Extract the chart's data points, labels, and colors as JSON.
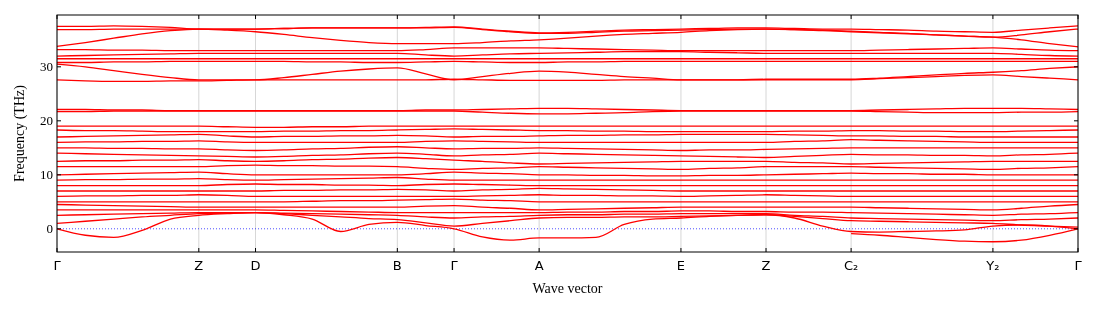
{
  "chart_data": {
    "type": "line",
    "xlabel": "Wave vector",
    "ylabel": "Frequency (THz)",
    "categories": [
      "Γ",
      null,
      null,
      null,
      null,
      "Z",
      null,
      "D",
      null,
      null,
      null,
      null,
      "B",
      null,
      "Γ",
      null,
      null,
      "A",
      null,
      null,
      null,
      null,
      "E",
      null,
      null,
      "Z",
      null,
      null,
      "C₂",
      null,
      null,
      null,
      null,
      "Y₂",
      null,
      null,
      "Γ"
    ],
    "ylim": [
      -4.3,
      39.6
    ],
    "yticks": [
      0,
      10,
      20,
      30
    ],
    "grid": "x",
    "line_style": "solid",
    "ref_lines": [
      {
        "axis": "y",
        "value": 0,
        "color": "#0000ff",
        "line_style": "dotted"
      }
    ],
    "series": [
      {
        "color": "#ff0000",
        "values": [
          37.5,
          37.5,
          37.6,
          37.5,
          37.3,
          37.0,
          37.0,
          37.0,
          37.1,
          37.2,
          37.2,
          37.2,
          37.2,
          37.3,
          37.4,
          37.0,
          36.6,
          36.3,
          36.4,
          36.6,
          36.8,
          36.9,
          37.0,
          37.1,
          37.2,
          37.2,
          37.1,
          37.0,
          37.0,
          36.9,
          36.8,
          36.6,
          36.5,
          36.4,
          36.8,
          37.2,
          37.6
        ]
      },
      {
        "color": "#ff0000",
        "values": [
          36.9,
          36.9,
          37.0,
          37.0,
          37.0,
          37.0,
          37.0,
          37.0,
          37.1,
          37.2,
          37.2,
          37.2,
          37.2,
          37.2,
          37.3,
          36.9,
          36.5,
          36.2,
          36.2,
          36.4,
          36.6,
          36.7,
          36.8,
          36.9,
          37.0,
          37.0,
          36.9,
          36.8,
          36.6,
          36.4,
          36.2,
          35.9,
          35.7,
          35.5,
          35.9,
          36.5,
          37.0
        ]
      },
      {
        "color": "#ff0000",
        "values": [
          33.8,
          34.5,
          35.3,
          36.1,
          36.7,
          37.0,
          36.8,
          36.5,
          36.0,
          35.4,
          34.9,
          34.5,
          34.3,
          34.3,
          34.3,
          34.5,
          34.8,
          35.0,
          35.3,
          35.7,
          36.0,
          36.2,
          36.4,
          36.7,
          36.9,
          37.0,
          36.9,
          36.7,
          36.5,
          36.3,
          36.1,
          35.9,
          35.7,
          35.5,
          35.0,
          34.3,
          33.7
        ]
      },
      {
        "color": "#ff0000",
        "values": [
          33.2,
          33.2,
          33.1,
          33.1,
          33.0,
          33.0,
          33.0,
          33.0,
          33.0,
          33.0,
          33.0,
          33.0,
          33.0,
          33.2,
          33.5,
          33.5,
          33.5,
          33.5,
          33.4,
          33.3,
          33.2,
          33.1,
          33.0,
          33.0,
          33.0,
          33.0,
          33.0,
          33.0,
          33.0,
          33.1,
          33.2,
          33.3,
          33.4,
          33.5,
          33.3,
          33.1,
          33.0
        ]
      },
      {
        "color": "#ff0000",
        "values": [
          32.0,
          32.1,
          32.2,
          32.3,
          32.4,
          32.5,
          32.5,
          32.5,
          32.5,
          32.5,
          32.5,
          32.5,
          32.5,
          32.2,
          32.0,
          32.2,
          32.4,
          32.5,
          32.6,
          32.7,
          32.8,
          32.8,
          32.8,
          32.7,
          32.6,
          32.5,
          32.5,
          32.5,
          32.5,
          32.5,
          32.5,
          32.5,
          32.5,
          32.5,
          32.3,
          32.1,
          32.0
        ]
      },
      {
        "color": "#ff0000",
        "values": [
          31.5,
          31.5,
          31.5,
          31.5,
          31.5,
          31.5,
          31.5,
          31.5,
          31.5,
          31.5,
          31.5,
          31.5,
          31.5,
          31.5,
          31.5,
          31.5,
          31.5,
          31.5,
          31.5,
          31.5,
          31.5,
          31.5,
          31.5,
          31.5,
          31.5,
          31.5,
          31.5,
          31.5,
          31.5,
          31.5,
          31.5,
          31.5,
          31.5,
          31.5,
          31.5,
          31.5,
          31.5
        ]
      },
      {
        "color": "#ff0000",
        "values": [
          30.8,
          30.8,
          30.9,
          30.9,
          31.0,
          31.0,
          31.0,
          31.0,
          31.0,
          30.9,
          30.9,
          30.8,
          30.8,
          30.9,
          31.0,
          30.9,
          30.8,
          30.8,
          30.9,
          30.9,
          31.0,
          31.0,
          31.0,
          31.0,
          31.0,
          31.0,
          31.0,
          31.0,
          31.0,
          31.0,
          31.0,
          31.0,
          31.0,
          31.0,
          31.0,
          31.0,
          31.0
        ]
      },
      {
        "color": "#ff0000",
        "values": [
          30.5,
          30.0,
          29.3,
          28.6,
          28.0,
          27.6,
          27.6,
          27.6,
          28.0,
          28.6,
          29.2,
          29.6,
          29.8,
          28.7,
          27.6,
          28.2,
          28.8,
          29.2,
          29.0,
          28.6,
          28.2,
          27.9,
          27.6,
          27.6,
          27.6,
          27.7,
          27.7,
          27.7,
          27.7,
          27.9,
          28.2,
          28.5,
          28.8,
          29.0,
          29.3,
          29.7,
          30.0
        ]
      },
      {
        "color": "#ff0000",
        "values": [
          27.6,
          27.4,
          27.3,
          27.3,
          27.4,
          27.4,
          27.5,
          27.6,
          27.6,
          27.6,
          27.6,
          27.6,
          27.6,
          27.6,
          27.7,
          27.6,
          27.5,
          27.5,
          27.5,
          27.5,
          27.6,
          27.6,
          27.6,
          27.6,
          27.6,
          27.6,
          27.6,
          27.6,
          27.6,
          27.8,
          28.0,
          28.2,
          28.4,
          28.5,
          28.2,
          27.9,
          27.6
        ]
      },
      {
        "color": "#ff0000",
        "values": [
          22.1,
          22.1,
          22.0,
          22.0,
          21.9,
          21.9,
          21.9,
          21.9,
          21.9,
          21.9,
          21.9,
          21.9,
          21.9,
          22.0,
          22.0,
          22.1,
          22.2,
          22.3,
          22.3,
          22.2,
          22.1,
          22.0,
          21.9,
          21.9,
          21.9,
          21.9,
          21.9,
          21.9,
          21.9,
          22.0,
          22.1,
          22.2,
          22.3,
          22.3,
          22.3,
          22.2,
          22.1
        ]
      },
      {
        "color": "#ff0000",
        "values": [
          21.7,
          21.7,
          21.8,
          21.8,
          21.8,
          21.8,
          21.8,
          21.8,
          21.8,
          21.8,
          21.8,
          21.8,
          21.8,
          21.8,
          21.8,
          21.6,
          21.4,
          21.3,
          21.3,
          21.4,
          21.5,
          21.7,
          21.8,
          21.8,
          21.8,
          21.8,
          21.8,
          21.8,
          21.8,
          21.7,
          21.6,
          21.5,
          21.5,
          21.5,
          21.6,
          21.6,
          21.7
        ]
      },
      {
        "color": "#ff0000",
        "values": [
          19.0,
          19.0,
          19.0,
          19.0,
          19.0,
          19.0,
          18.9,
          18.8,
          18.8,
          18.9,
          18.9,
          19.0,
          19.0,
          19.0,
          19.0,
          19.0,
          19.0,
          19.0,
          19.0,
          19.0,
          19.0,
          19.0,
          19.0,
          19.0,
          19.0,
          19.0,
          19.0,
          19.0,
          19.0,
          19.0,
          19.0,
          19.0,
          19.0,
          19.0,
          19.0,
          19.0,
          19.0
        ]
      },
      {
        "color": "#ff0000",
        "values": [
          18.3,
          18.2,
          18.2,
          18.1,
          18.0,
          18.0,
          18.0,
          18.0,
          18.1,
          18.1,
          18.2,
          18.2,
          18.3,
          18.4,
          18.5,
          18.4,
          18.3,
          18.2,
          18.2,
          18.1,
          18.1,
          18.0,
          18.0,
          18.0,
          18.0,
          18.0,
          18.1,
          18.1,
          18.2,
          18.2,
          18.1,
          18.1,
          18.0,
          18.0,
          18.1,
          18.2,
          18.3
        ]
      },
      {
        "color": "#ff0000",
        "values": [
          17.0,
          17.1,
          17.2,
          17.3,
          17.4,
          17.5,
          17.2,
          17.0,
          17.1,
          17.1,
          17.2,
          17.2,
          17.3,
          17.2,
          17.0,
          17.1,
          17.1,
          17.2,
          17.3,
          17.3,
          17.4,
          17.4,
          17.5,
          17.5,
          17.5,
          17.5,
          17.4,
          17.3,
          17.2,
          17.2,
          17.1,
          17.1,
          17.0,
          17.0,
          17.0,
          17.0,
          17.0
        ]
      },
      {
        "color": "#ff0000",
        "values": [
          16.0,
          16.1,
          16.1,
          16.2,
          16.2,
          16.3,
          16.1,
          16.0,
          16.0,
          16.0,
          16.0,
          16.0,
          16.0,
          16.2,
          16.3,
          16.2,
          16.1,
          16.0,
          16.0,
          16.0,
          16.0,
          16.0,
          16.0,
          16.0,
          16.0,
          16.0,
          16.2,
          16.3,
          16.5,
          16.4,
          16.3,
          16.2,
          16.1,
          16.0,
          16.0,
          16.0,
          16.0
        ]
      },
      {
        "color": "#ff0000",
        "values": [
          15.0,
          15.0,
          14.9,
          14.9,
          14.8,
          14.8,
          14.6,
          14.5,
          14.6,
          14.8,
          14.9,
          15.1,
          15.2,
          15.0,
          14.8,
          14.9,
          14.9,
          15.0,
          14.9,
          14.8,
          14.7,
          14.6,
          14.5,
          14.6,
          14.6,
          14.7,
          14.8,
          14.9,
          15.0,
          15.0,
          15.0,
          15.0,
          15.0,
          15.0,
          15.0,
          15.0,
          15.0
        ]
      },
      {
        "color": "#ff0000",
        "values": [
          14.0,
          13.9,
          13.8,
          13.7,
          13.6,
          13.5,
          13.4,
          13.3,
          13.4,
          13.6,
          13.7,
          13.9,
          14.0,
          13.8,
          13.5,
          13.7,
          13.8,
          14.0,
          13.9,
          13.8,
          13.7,
          13.6,
          13.5,
          13.4,
          13.3,
          13.2,
          13.4,
          13.6,
          13.8,
          13.7,
          13.7,
          13.6,
          13.6,
          13.5,
          13.7,
          13.8,
          14.0
        ]
      },
      {
        "color": "#ff0000",
        "values": [
          12.5,
          12.6,
          12.6,
          12.7,
          12.7,
          12.8,
          12.6,
          12.5,
          12.6,
          12.8,
          12.9,
          13.1,
          13.2,
          13.0,
          12.7,
          12.5,
          12.2,
          12.0,
          12.1,
          12.2,
          12.3,
          12.4,
          12.5,
          12.5,
          12.5,
          12.5,
          12.3,
          12.2,
          12.0,
          12.1,
          12.2,
          12.3,
          12.4,
          12.5,
          12.5,
          12.5,
          12.5
        ]
      },
      {
        "color": "#ff0000",
        "values": [
          11.5,
          11.5,
          11.5,
          11.5,
          11.5,
          11.5,
          11.7,
          11.8,
          11.7,
          11.7,
          11.6,
          11.6,
          11.5,
          11.2,
          11.0,
          11.2,
          11.3,
          11.5,
          11.4,
          11.3,
          11.2,
          11.1,
          11.0,
          11.2,
          11.3,
          11.5,
          11.5,
          11.5,
          11.5,
          11.4,
          11.3,
          11.2,
          11.1,
          11.0,
          11.2,
          11.3,
          11.5
        ]
      },
      {
        "color": "#ff0000",
        "values": [
          10.0,
          10.1,
          10.2,
          10.3,
          10.4,
          10.5,
          10.2,
          10.0,
          10.0,
          10.0,
          10.0,
          10.0,
          10.0,
          10.2,
          10.5,
          10.3,
          10.2,
          10.0,
          10.0,
          9.9,
          9.9,
          9.8,
          9.8,
          9.9,
          9.9,
          10.0,
          10.1,
          10.2,
          10.3,
          10.2,
          10.2,
          10.1,
          10.1,
          10.0,
          10.0,
          10.0,
          10.0
        ]
      },
      {
        "color": "#ff0000",
        "values": [
          9.0,
          9.1,
          9.1,
          9.2,
          9.2,
          9.3,
          9.1,
          9.0,
          9.1,
          9.2,
          9.3,
          9.4,
          9.5,
          9.2,
          9.0,
          9.0,
          9.0,
          9.0,
          9.0,
          9.0,
          9.0,
          9.0,
          9.0,
          9.0,
          9.0,
          9.0,
          9.0,
          9.0,
          9.0,
          9.0,
          9.0,
          9.0,
          9.0,
          9.0,
          9.0,
          9.0,
          9.0
        ]
      },
      {
        "color": "#ff0000",
        "values": [
          8.0,
          8.0,
          8.0,
          8.0,
          8.0,
          8.0,
          8.2,
          8.3,
          8.2,
          8.2,
          8.1,
          8.1,
          8.0,
          8.2,
          8.3,
          8.2,
          8.1,
          8.0,
          8.0,
          8.0,
          8.0,
          8.0,
          8.0,
          8.0,
          8.0,
          8.0,
          8.0,
          8.0,
          8.0,
          8.0,
          8.0,
          8.0,
          8.0,
          8.0,
          8.0,
          8.0,
          8.0
        ]
      },
      {
        "color": "#ff0000",
        "values": [
          7.0,
          7.0,
          7.0,
          7.0,
          7.0,
          7.0,
          7.0,
          7.0,
          7.1,
          7.1,
          7.2,
          7.2,
          7.3,
          7.2,
          7.0,
          7.2,
          7.3,
          7.5,
          7.4,
          7.3,
          7.2,
          7.1,
          7.0,
          7.0,
          7.0,
          7.0,
          7.0,
          7.0,
          7.0,
          7.0,
          7.0,
          7.0,
          7.0,
          7.0,
          7.0,
          7.0,
          7.0
        ]
      },
      {
        "color": "#ff0000",
        "values": [
          6.0,
          6.1,
          6.1,
          6.2,
          6.2,
          6.3,
          6.2,
          6.0,
          6.0,
          6.0,
          6.0,
          6.0,
          6.0,
          6.0,
          6.0,
          6.1,
          6.2,
          6.3,
          6.2,
          6.2,
          6.1,
          6.1,
          6.0,
          6.1,
          6.2,
          6.3,
          6.2,
          6.1,
          6.0,
          6.0,
          6.0,
          6.0,
          6.0,
          6.0,
          6.0,
          6.0,
          6.0
        ]
      },
      {
        "color": "#ff0000",
        "values": [
          5.0,
          5.0,
          5.0,
          5.0,
          5.0,
          5.0,
          5.0,
          5.0,
          5.0,
          5.1,
          5.2,
          5.2,
          5.3,
          5.4,
          5.5,
          5.3,
          5.2,
          5.0,
          5.0,
          5.0,
          5.0,
          5.0,
          5.0,
          5.0,
          5.0,
          5.0,
          5.0,
          5.0,
          5.0,
          5.0,
          5.0,
          5.0,
          5.0,
          5.0,
          5.0,
          5.0,
          5.0
        ]
      },
      {
        "color": "#ff0000",
        "values": [
          4.5,
          4.4,
          4.3,
          4.2,
          4.1,
          4.0,
          4.0,
          4.0,
          4.0,
          4.0,
          4.0,
          4.0,
          4.0,
          4.2,
          4.3,
          4.0,
          3.8,
          3.5,
          3.6,
          3.7,
          3.8,
          3.9,
          4.0,
          4.0,
          4.0,
          4.0,
          4.0,
          4.0,
          4.0,
          3.9,
          3.8,
          3.7,
          3.6,
          3.5,
          3.8,
          4.2,
          4.5
        ]
      },
      {
        "color": "#ff0000",
        "values": [
          3.5,
          3.5,
          3.5,
          3.5,
          3.5,
          3.5,
          3.5,
          3.5,
          3.4,
          3.3,
          3.2,
          3.1,
          3.0,
          3.0,
          3.0,
          3.0,
          3.0,
          3.0,
          3.1,
          3.1,
          3.2,
          3.2,
          3.3,
          3.3,
          3.2,
          3.2,
          3.1,
          3.1,
          3.0,
          2.9,
          2.8,
          2.7,
          2.6,
          2.5,
          2.7,
          2.8,
          3.0
        ]
      },
      {
        "color": "#ff0000",
        "values": [
          2.5,
          2.6,
          2.7,
          2.8,
          2.9,
          3.0,
          3.0,
          3.0,
          2.9,
          2.8,
          2.7,
          2.6,
          2.5,
          2.2,
          2.0,
          2.2,
          2.3,
          2.5,
          2.6,
          2.6,
          2.7,
          2.7,
          2.8,
          2.8,
          2.8,
          2.8,
          2.5,
          2.3,
          2.0,
          1.9,
          1.8,
          1.7,
          1.6,
          1.5,
          1.7,
          1.8,
          2.0
        ]
      },
      {
        "color": "#ff0000",
        "values": [
          1.0,
          1.4,
          1.8,
          2.2,
          2.5,
          2.8,
          2.9,
          3.0,
          2.8,
          2.5,
          2.2,
          1.9,
          1.7,
          1.1,
          0.5,
          1.0,
          1.5,
          2.0,
          2.1,
          2.1,
          2.2,
          2.2,
          2.3,
          2.4,
          2.5,
          2.6,
          2.3,
          1.9,
          1.5,
          1.4,
          1.3,
          1.2,
          1.1,
          1.0,
          0.7,
          0.5,
          0.3
        ]
      },
      {
        "color": "#ff0000",
        "values": [
          0,
          -1.2,
          -1.6,
          -0.3,
          1.8,
          2.5,
          2.8,
          3.0,
          2.6,
          1.8,
          -0.5,
          0.8,
          1.2,
          0.6,
          0,
          -1.5,
          -2.1,
          -1.7,
          -1.7,
          -1.6,
          0.8,
          1.8,
          2.0,
          2.3,
          2.5,
          2.6,
          2.0,
          0.5,
          -0.5,
          -0.6,
          -0.5,
          -0.4,
          -0.2,
          0.5,
          0.7,
          0.5,
          0
        ]
      },
      {
        "color": "#ff0000",
        "values": [
          null,
          null,
          null,
          null,
          null,
          null,
          null,
          null,
          null,
          null,
          null,
          null,
          null,
          null,
          null,
          null,
          null,
          null,
          null,
          null,
          null,
          null,
          null,
          null,
          null,
          null,
          null,
          null,
          -0.9,
          -1.2,
          -1.6,
          -2.0,
          -2.3,
          -2.4,
          -2.1,
          -1.2,
          0
        ]
      }
    ]
  }
}
